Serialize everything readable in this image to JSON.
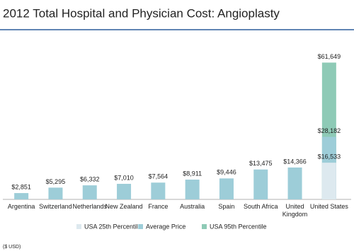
{
  "chart_data": {
    "type": "bar",
    "title": "2012 Total Hospital and Physician Cost: Angioplasty",
    "footnote": "($ USD)",
    "categories": [
      "Argentina",
      "Switzerland",
      "Netherlands",
      "New Zealand",
      "France",
      "Australia",
      "Spain",
      "South Africa",
      "United Kingdom",
      "United States"
    ],
    "series": [
      {
        "name": "USA 95th Percentile",
        "color": "#8ecab6",
        "values": [
          null,
          null,
          null,
          null,
          null,
          null,
          null,
          null,
          null,
          61649
        ],
        "value_labels": [
          null,
          null,
          null,
          null,
          null,
          null,
          null,
          null,
          null,
          "$61,649"
        ]
      },
      {
        "name": "Average Price",
        "color": "#9dcdd8",
        "values": [
          2851,
          5295,
          6332,
          7010,
          7564,
          8911,
          9446,
          13475,
          14366,
          28182
        ],
        "value_labels": [
          "$2,851",
          "$5,295",
          "$6,332",
          "$7,010",
          "$7,564",
          "$8,911",
          "$9,446",
          "$13,475",
          "$14,366",
          "$28,182"
        ]
      },
      {
        "name": "USA 25th Percentile",
        "color": "#dde9ef",
        "values": [
          null,
          null,
          null,
          null,
          null,
          null,
          null,
          null,
          null,
          16533
        ],
        "value_labels": [
          null,
          null,
          null,
          null,
          null,
          null,
          null,
          null,
          null,
          "$16,533"
        ]
      }
    ],
    "legend_order": [
      2,
      1,
      0
    ],
    "ylim": [
      0,
      65000
    ]
  }
}
